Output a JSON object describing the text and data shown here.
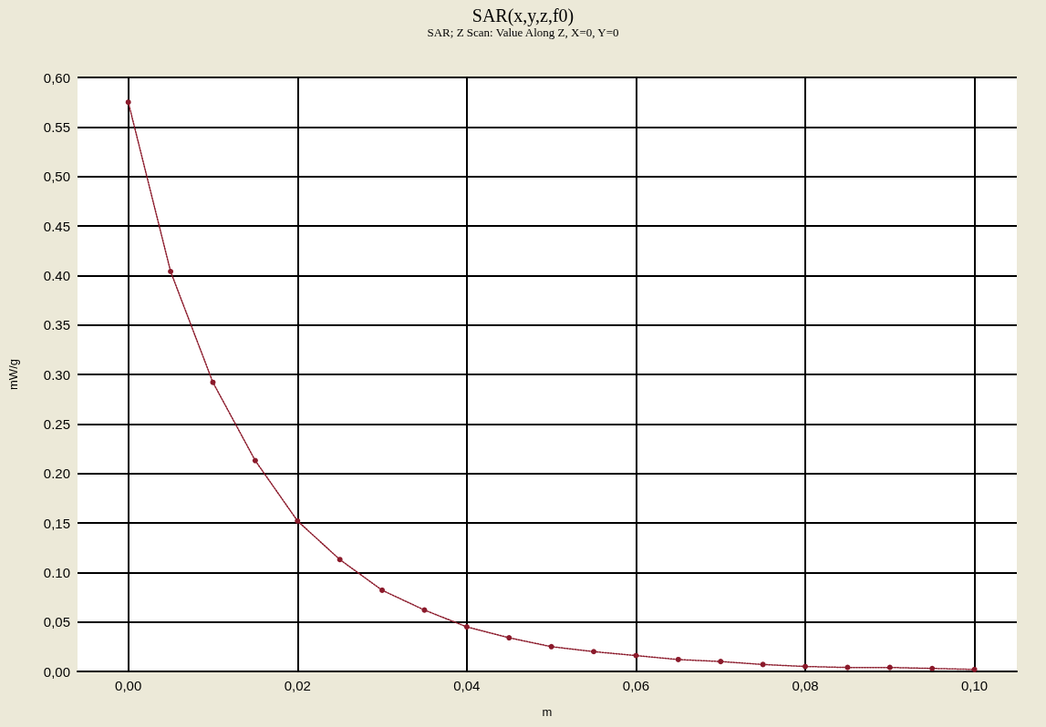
{
  "chart_data": {
    "type": "line",
    "title": "SAR(x,y,z,f0)",
    "subtitle": "SAR; Z Scan: Value Along Z, X=0, Y=0",
    "xlabel": "m",
    "ylabel": "mW/g",
    "x": [
      0,
      0.005,
      0.01,
      0.015,
      0.02,
      0.025,
      0.03,
      0.035,
      0.04,
      0.045,
      0.05,
      0.055,
      0.06,
      0.065,
      0.07,
      0.075,
      0.08,
      0.085,
      0.09,
      0.095,
      0.1
    ],
    "series": [
      {
        "color": "#8b1a2b",
        "values": [
          0.575,
          0.404,
          0.292,
          0.213,
          0.152,
          0.113,
          0.082,
          0.062,
          0.045,
          0.034,
          0.025,
          0.02,
          0.016,
          0.012,
          0.01,
          0.007,
          0.005,
          0.004,
          0.004,
          0.003,
          0.002
        ]
      }
    ],
    "xlim": [
      -0.006,
      0.105
    ],
    "xticks": [
      {
        "value": 0,
        "label": "0,00"
      },
      {
        "value": 0.02,
        "label": "0,02"
      },
      {
        "value": 0.04,
        "label": "0,04"
      },
      {
        "value": 0.06,
        "label": "0,06"
      },
      {
        "value": 0.08,
        "label": "0,08"
      },
      {
        "value": 0.1,
        "label": "0,10"
      }
    ],
    "ylim": [
      0,
      0.6
    ],
    "yticks": [
      {
        "value": 0,
        "label": "0,00"
      },
      {
        "value": 0.05,
        "label": "0,05"
      },
      {
        "value": 0.1,
        "label": "0.10"
      },
      {
        "value": 0.15,
        "label": "0,15"
      },
      {
        "value": 0.2,
        "label": "0.20"
      },
      {
        "value": 0.25,
        "label": "0.25"
      },
      {
        "value": 0.3,
        "label": "0.30"
      },
      {
        "value": 0.35,
        "label": "0.35"
      },
      {
        "value": 0.4,
        "label": "0.40"
      },
      {
        "value": 0.45,
        "label": "0.45"
      },
      {
        "value": 0.5,
        "label": "0,50"
      },
      {
        "value": 0.55,
        "label": "0.55"
      },
      {
        "value": 0.6,
        "label": "0,60"
      }
    ],
    "grid": true,
    "marker": "circle",
    "line_style": "dotted"
  }
}
